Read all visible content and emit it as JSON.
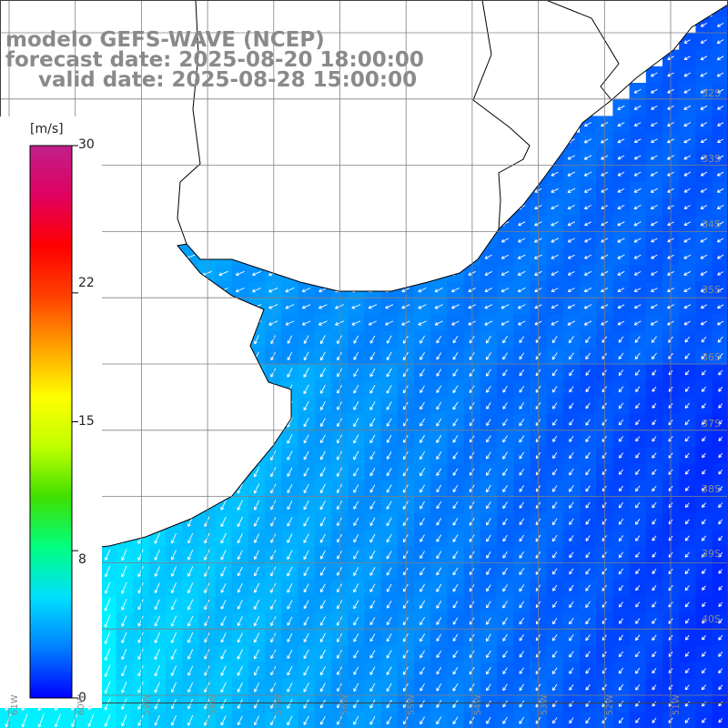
{
  "title": {
    "model": "modelo GEFS-WAVE (NCEP)",
    "forecast": "forecast date: 2025-08-20 18:00:00",
    "valid": "valid date: 2025-08-28 15:00:00"
  },
  "colorbar": {
    "unit": "[m/s]",
    "ticks": [
      "30",
      "22",
      "15",
      "8",
      "0"
    ],
    "tick_values": [
      30,
      22,
      15,
      8,
      0
    ],
    "range": [
      0,
      30
    ],
    "colors": [
      "#0000ff",
      "#0080ff",
      "#00e0ff",
      "#00ff80",
      "#40e000",
      "#c0ff00",
      "#ffff00",
      "#ffa000",
      "#ff4000",
      "#ff0000",
      "#e00060",
      "#c0208a"
    ]
  },
  "lat_labels": [
    "32S",
    "33S",
    "34S",
    "35S",
    "36S",
    "37S",
    "38S",
    "39S",
    "40S"
  ],
  "lon_labels": [
    "61W",
    "60W",
    "59W",
    "58W",
    "57W",
    "56W",
    "55W",
    "54W",
    "53W",
    "52W",
    "51W"
  ],
  "colors": {
    "land": "#ffffff",
    "coast": "#000000",
    "grid": "#808080",
    "arrow": "#ffffff",
    "title": "#8a8a8a"
  },
  "map_data": {
    "variable": "wind speed and direction",
    "unit": "m/s",
    "typical_speed_range": [
      5,
      10
    ],
    "dominant_flow": "from northeast toward southwest"
  }
}
